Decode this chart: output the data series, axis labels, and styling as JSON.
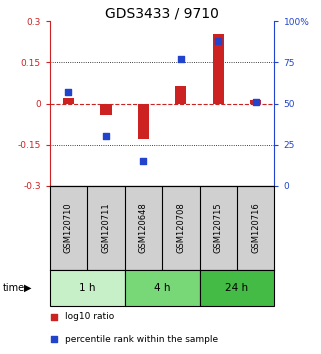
{
  "title": "GDS3433 / 9710",
  "samples": [
    "GSM120710",
    "GSM120711",
    "GSM120648",
    "GSM120708",
    "GSM120715",
    "GSM120716"
  ],
  "log10_ratio": [
    0.022,
    -0.042,
    -0.13,
    0.063,
    0.255,
    0.012
  ],
  "percentile_rank": [
    57,
    30,
    15,
    77,
    88,
    51
  ],
  "time_groups": [
    {
      "label": "1 h",
      "start": 0,
      "end": 2,
      "color": "#c8f0c8"
    },
    {
      "label": "4 h",
      "start": 2,
      "end": 4,
      "color": "#78d878"
    },
    {
      "label": "24 h",
      "start": 4,
      "end": 6,
      "color": "#44bb44"
    }
  ],
  "left_yticks": [
    -0.3,
    -0.15,
    0.0,
    0.15,
    0.3
  ],
  "right_yticks": [
    0,
    25,
    50,
    75,
    100
  ],
  "left_yticklabels": [
    "-0.3",
    "-0.15",
    "0",
    "0.15",
    "0.3"
  ],
  "right_yticklabels": [
    "0",
    "25",
    "50",
    "75",
    "100%"
  ],
  "ylim": [
    -0.3,
    0.3
  ],
  "right_ylim": [
    0,
    100
  ],
  "bar_color_red": "#cc2222",
  "dot_color_blue": "#2244cc",
  "bg_color": "#ffffff",
  "plot_bg": "#ffffff",
  "title_fontsize": 10,
  "legend_items": [
    "log10 ratio",
    "percentile rank within the sample"
  ],
  "zero_line_color": "#cc2222",
  "grid_color": "#000000",
  "bar_width": 0.3,
  "sample_bg": "#d0d0d0"
}
